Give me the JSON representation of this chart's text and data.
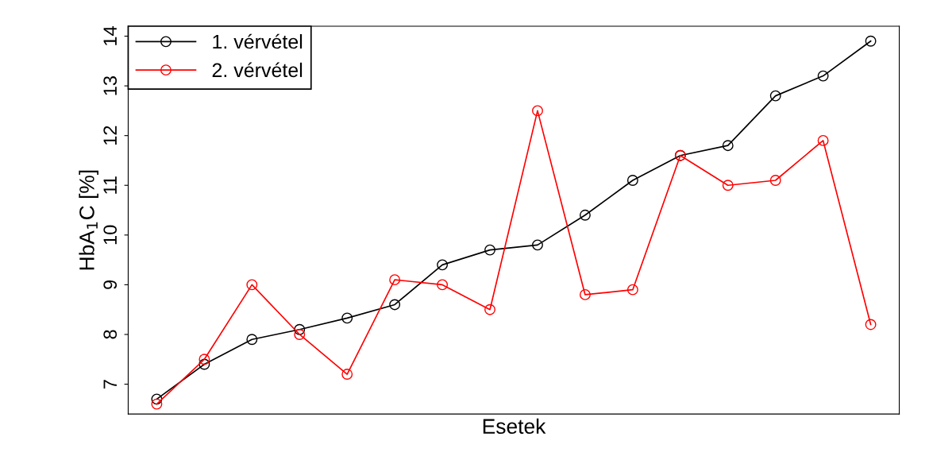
{
  "chart_data": {
    "type": "line",
    "xlabel": "Esetek",
    "ylabel": "HbA$_{1}$C [%]",
    "categories": [
      null,
      null,
      null,
      null,
      null,
      null,
      null,
      null,
      null,
      null,
      null,
      null,
      null,
      null,
      null,
      null
    ],
    "series": [
      {
        "name": "1. vérvétel",
        "color": "#000000",
        "values": [
          6.7,
          7.4,
          7.9,
          8.1,
          8.33,
          8.6,
          9.4,
          9.7,
          9.8,
          10.4,
          11.1,
          11.6,
          11.8,
          12.8,
          13.2,
          13.9
        ]
      },
      {
        "name": "2. vérvétel",
        "color": "#ff0000",
        "values": [
          6.6,
          7.5,
          9.0,
          8.0,
          7.2,
          9.1,
          9.0,
          8.5,
          12.5,
          8.8,
          8.9,
          11.6,
          11.0,
          11.1,
          11.9,
          8.2
        ]
      }
    ],
    "ylim": [
      6.4,
      14.2
    ],
    "yticks": [
      7,
      8,
      9,
      10,
      11,
      12,
      13,
      14
    ],
    "tick_labels": "y",
    "marker": "circle",
    "line_style": "solid",
    "legend": "top left",
    "grid": false
  }
}
